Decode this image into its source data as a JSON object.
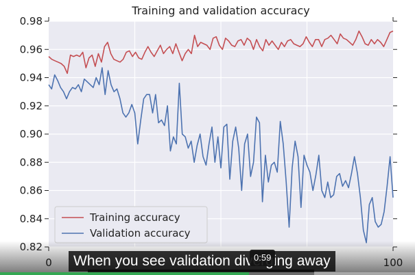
{
  "chart_data": {
    "type": "line",
    "title": "Training and validation accuracy",
    "xlabel": "",
    "ylabel": "",
    "xlim": [
      0,
      100
    ],
    "ylim": [
      0.82,
      0.98
    ],
    "x_ticks": [
      0,
      100
    ],
    "y_ticks": [
      0.82,
      0.84,
      0.86,
      0.88,
      0.9,
      0.92,
      0.94,
      0.96,
      0.98
    ],
    "grid": true,
    "legend_position": "lower-left",
    "series": [
      {
        "name": "Training accuracy",
        "color": "#c44e52",
        "values": [
          0.955,
          0.953,
          0.952,
          0.951,
          0.95,
          0.948,
          0.943,
          0.956,
          0.955,
          0.956,
          0.955,
          0.958,
          0.947,
          0.954,
          0.956,
          0.948,
          0.957,
          0.951,
          0.962,
          0.965,
          0.957,
          0.953,
          0.952,
          0.951,
          0.953,
          0.958,
          0.959,
          0.955,
          0.958,
          0.954,
          0.953,
          0.958,
          0.962,
          0.958,
          0.955,
          0.959,
          0.963,
          0.957,
          0.96,
          0.962,
          0.957,
          0.964,
          0.958,
          0.952,
          0.957,
          0.96,
          0.957,
          0.97,
          0.962,
          0.965,
          0.964,
          0.963,
          0.96,
          0.968,
          0.969,
          0.963,
          0.96,
          0.968,
          0.966,
          0.963,
          0.962,
          0.966,
          0.967,
          0.963,
          0.968,
          0.966,
          0.96,
          0.967,
          0.962,
          0.959,
          0.967,
          0.963,
          0.966,
          0.963,
          0.96,
          0.965,
          0.962,
          0.966,
          0.967,
          0.964,
          0.963,
          0.962,
          0.964,
          0.969,
          0.965,
          0.962,
          0.967,
          0.967,
          0.962,
          0.967,
          0.968,
          0.97,
          0.967,
          0.964,
          0.971,
          0.968,
          0.967,
          0.965,
          0.963,
          0.967,
          0.973,
          0.969,
          0.964,
          0.963,
          0.967,
          0.964,
          0.967,
          0.965,
          0.962,
          0.967,
          0.972,
          0.973
        ],
        "x_max": 100
      },
      {
        "name": "Validation accuracy",
        "color": "#4c72b0",
        "values": [
          0.935,
          0.932,
          0.942,
          0.938,
          0.933,
          0.93,
          0.925,
          0.93,
          0.933,
          0.932,
          0.935,
          0.93,
          0.939,
          0.937,
          0.935,
          0.933,
          0.94,
          0.935,
          0.947,
          0.928,
          0.945,
          0.935,
          0.93,
          0.932,
          0.925,
          0.915,
          0.912,
          0.915,
          0.921,
          0.915,
          0.893,
          0.91,
          0.925,
          0.928,
          0.928,
          0.915,
          0.928,
          0.908,
          0.91,
          0.906,
          0.92,
          0.888,
          0.898,
          0.893,
          0.936,
          0.9,
          0.898,
          0.89,
          0.895,
          0.88,
          0.892,
          0.9,
          0.884,
          0.878,
          0.893,
          0.905,
          0.88,
          0.898,
          0.876,
          0.905,
          0.907,
          0.868,
          0.895,
          0.905,
          0.89,
          0.86,
          0.893,
          0.9,
          0.87,
          0.88,
          0.912,
          0.908,
          0.852,
          0.885,
          0.866,
          0.878,
          0.88,
          0.873,
          0.909,
          0.893,
          0.866,
          0.834,
          0.876,
          0.895,
          0.884,
          0.848,
          0.885,
          0.878,
          0.873,
          0.86,
          0.871,
          0.885,
          0.86,
          0.855,
          0.866,
          0.855,
          0.857,
          0.87,
          0.872,
          0.863,
          0.867,
          0.862,
          0.872,
          0.884,
          0.872,
          0.855,
          0.832,
          0.823,
          0.85,
          0.855,
          0.838,
          0.834,
          0.836,
          0.845,
          0.863,
          0.884,
          0.855
        ],
        "x_max": 100
      }
    ]
  },
  "video_overlay": {
    "caption_line1": "When you see validation diverging away",
    "timestamp": "0:59",
    "progress_fraction": 0.6
  }
}
